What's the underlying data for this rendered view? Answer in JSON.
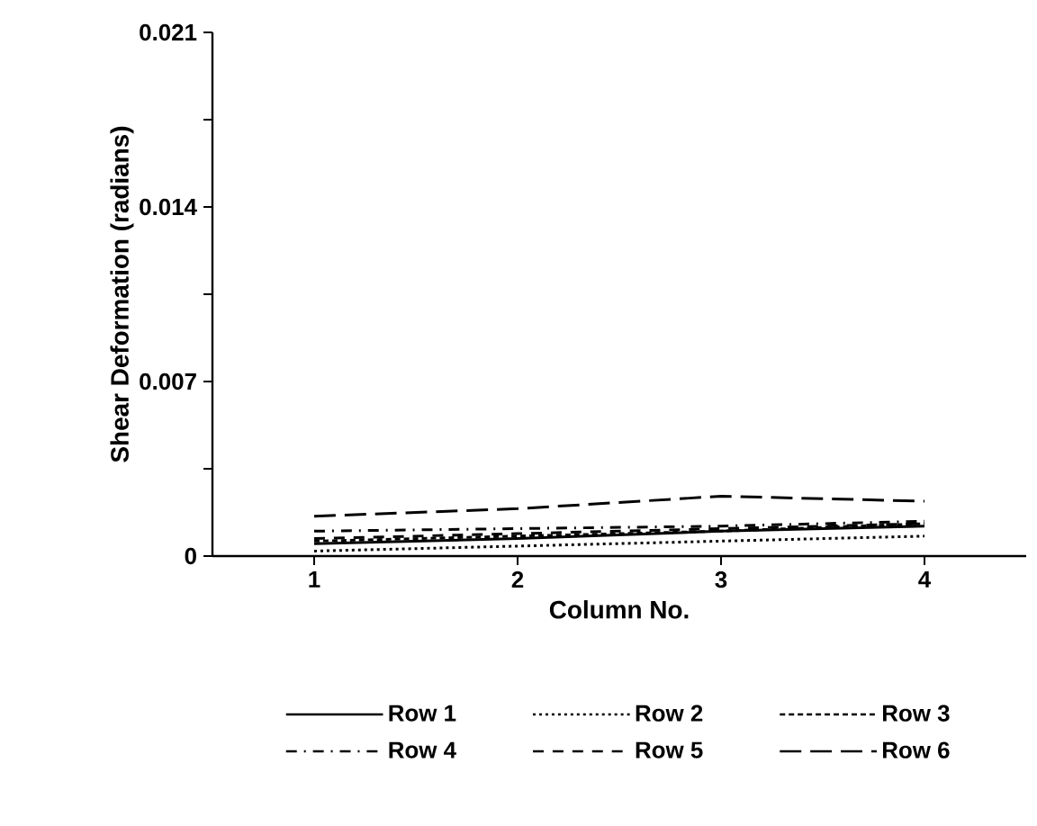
{
  "chart_data": {
    "type": "line",
    "xlabel": "Column No.",
    "ylabel": "Shear Deformation (radians)",
    "categories": [
      "1",
      "2",
      "3",
      "4"
    ],
    "ylim": [
      0,
      0.021
    ],
    "yticks": [
      0,
      {
        "value": 0.0035,
        "label": null
      },
      0.007,
      {
        "value": 0.0105,
        "label": null
      },
      0.014,
      {
        "value": 0.0175,
        "label": null
      },
      0.021
    ],
    "legend": "bottom",
    "grid": false,
    "marker": "none",
    "series": [
      {
        "name": "Row 1",
        "color": "#000000",
        "line_style": "solid",
        "values": [
          0.0005,
          0.0007,
          0.001,
          0.0012
        ]
      },
      {
        "name": "Row 2",
        "color": "#000000",
        "line_style": "dotted",
        "values": [
          0.0002,
          0.0004,
          0.0006,
          0.0008
        ]
      },
      {
        "name": "Row 3",
        "color": "#000000",
        "line_style": "dashed",
        "values": [
          0.0006,
          0.0008,
          0.001,
          0.0013
        ]
      },
      {
        "name": "Row 4",
        "color": "#000000",
        "line_style": "dashdot",
        "values": [
          0.001,
          0.0011,
          0.0012,
          0.0014
        ]
      },
      {
        "name": "Row 5",
        "color": "#000000",
        "line_style": "loosely dashed",
        "values": [
          0.0007,
          0.0009,
          0.0011,
          0.0013
        ]
      },
      {
        "name": "Row 6",
        "color": "#000000",
        "line_style": "long dashed",
        "values": [
          0.0016,
          0.0019,
          0.0024,
          0.0022
        ]
      }
    ]
  }
}
